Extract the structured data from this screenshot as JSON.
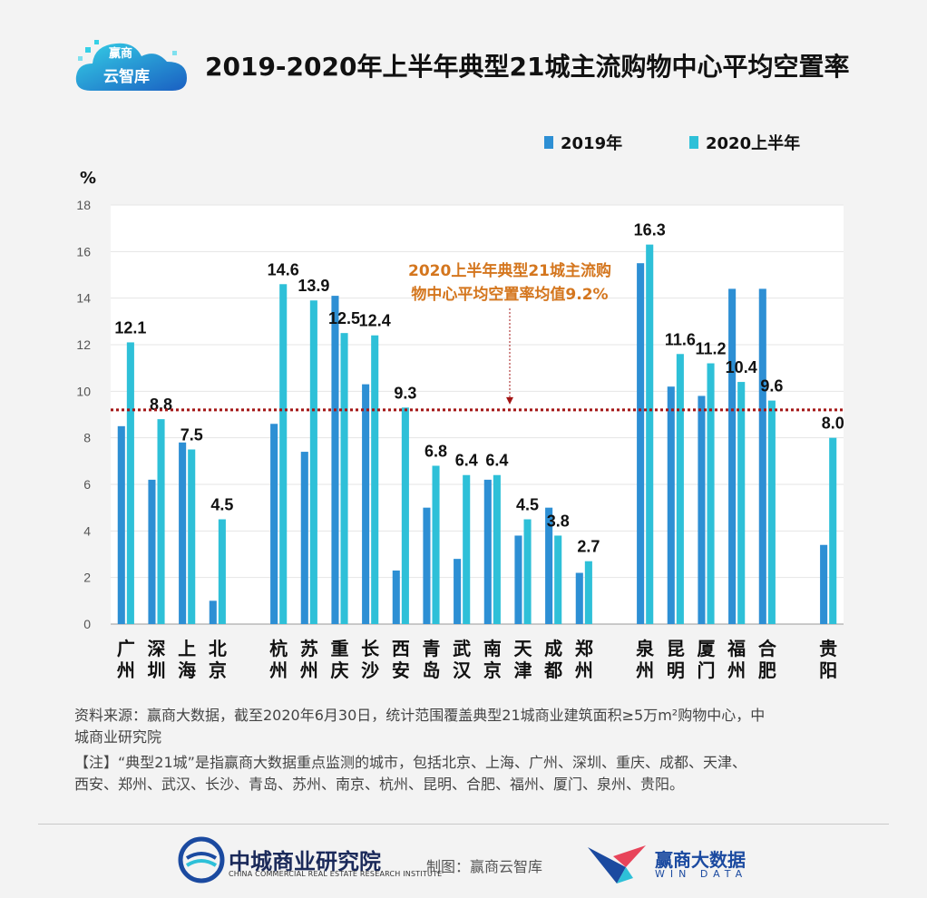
{
  "branding": {
    "logo_line1": "赢商",
    "logo_line2": "云智库"
  },
  "title": "2019-2020年上半年典型21城主流购物中心平均空置率",
  "legend": [
    "2019年",
    "2020上半年"
  ],
  "colors": {
    "series_2019": "#2d8fd4",
    "series_2020": "#2ec0d8",
    "avg_line": "#a31515",
    "annotation": "#d4761e",
    "grid": "#e4e4e4",
    "plot_bg": "#ffffff"
  },
  "chart_data": {
    "type": "bar",
    "unit_label": "%",
    "ylim": [
      0,
      18
    ],
    "yticks": [
      0,
      2,
      4,
      6,
      8,
      10,
      12,
      14,
      16,
      18
    ],
    "grid": true,
    "legend_position": "top-right",
    "groups": [
      [
        "广州",
        "深圳",
        "上海",
        "北京"
      ],
      [
        "杭州",
        "苏州",
        "重庆",
        "长沙",
        "西安",
        "青岛",
        "武汉",
        "南京",
        "天津",
        "成都",
        "郑州"
      ],
      [
        "泉州",
        "昆明",
        "厦门",
        "福州",
        "合肥"
      ],
      [
        "贵阳"
      ]
    ],
    "categories": [
      "广州",
      "深圳",
      "上海",
      "北京",
      "杭州",
      "苏州",
      "重庆",
      "长沙",
      "西安",
      "青岛",
      "武汉",
      "南京",
      "天津",
      "成都",
      "郑州",
      "泉州",
      "昆明",
      "厦门",
      "福州",
      "合肥",
      "贵阳"
    ],
    "series": [
      {
        "name": "2019年",
        "values": [
          8.5,
          6.2,
          7.8,
          1.0,
          8.6,
          7.4,
          14.1,
          10.3,
          2.3,
          5.0,
          2.8,
          6.2,
          3.8,
          5.0,
          2.2,
          15.5,
          10.2,
          9.8,
          14.4,
          14.4,
          3.4
        ]
      },
      {
        "name": "2020上半年",
        "values": [
          12.1,
          8.8,
          7.5,
          4.5,
          14.6,
          13.9,
          12.5,
          12.4,
          9.3,
          6.8,
          6.4,
          6.4,
          4.5,
          3.8,
          2.7,
          16.3,
          11.6,
          11.2,
          10.4,
          9.6,
          8.0
        ]
      }
    ],
    "data_labels": [
      "12.1",
      "8.8",
      "7.5",
      "4.5",
      "14.6",
      "13.9",
      "12.5",
      "12.4",
      "9.3",
      "6.8",
      "6.4",
      "6.4",
      "4.5",
      "3.8",
      "2.7",
      "16.3",
      "11.6",
      "11.2",
      "10.4",
      "9.6",
      "8.0"
    ],
    "reference_line": {
      "value": 9.2,
      "label_line1": "2020上半年典型21城主流购",
      "label_line2": "物中心平均空置率均值9.2%"
    }
  },
  "notes": {
    "source_line1": "资料来源：赢商大数据，截至2020年6月30日，统计范围覆盖典型21城商业建筑面积≥5万m²购物中心，中",
    "source_line2": "城商业研究院",
    "note_line1": "【注】“典型21城”是指赢商大数据重点监测的城市，包括北京、上海、广州、深圳、重庆、成都、天津、",
    "note_line2": "西安、郑州、武汉、长沙、青岛、苏州、南京、杭州、昆明、合肥、福州、厦门、泉州、贵阳。"
  },
  "footer": {
    "org_cn": "中城商业研究院",
    "org_en": "CHINA COMMERCIAL REAL ESTATE RESEARCH INSTITUTE",
    "credit": "制图：赢商云智库",
    "wind_cn": "赢商大数据",
    "wind_en": "WIN DATA"
  }
}
